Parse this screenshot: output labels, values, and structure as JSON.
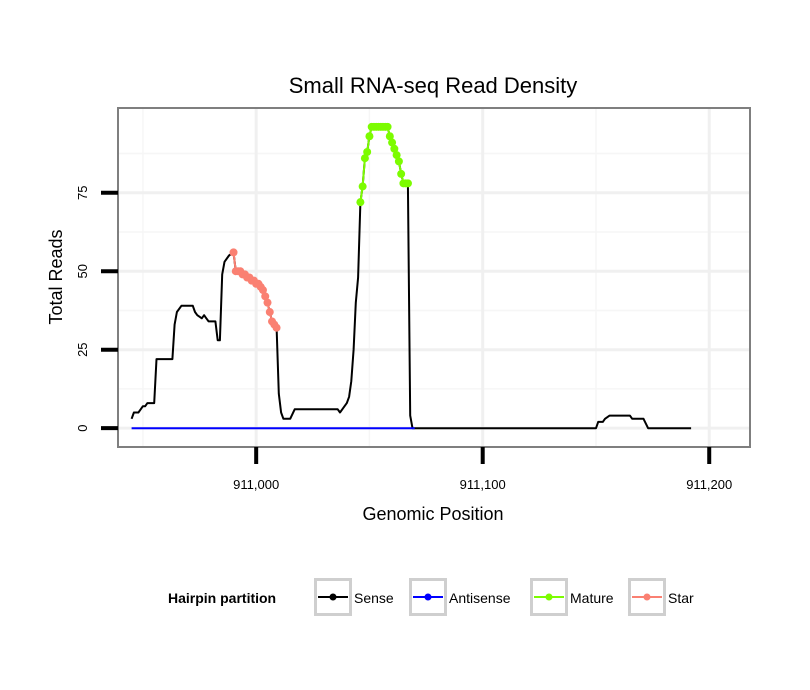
{
  "chart_data": {
    "type": "line",
    "title": "Small RNA-seq Read Density",
    "xlabel": "Genomic Position",
    "ylabel": "Total Reads",
    "xlim": [
      910939,
      911218
    ],
    "ylim": [
      -6,
      102
    ],
    "x_ticks": [
      {
        "value": 911000,
        "label": "911,000"
      },
      {
        "value": 911100,
        "label": "911,100"
      },
      {
        "value": 911200,
        "label": "911,200"
      }
    ],
    "y_ticks": [
      {
        "value": 0,
        "label": "0"
      },
      {
        "value": 25,
        "label": "25"
      },
      {
        "value": 50,
        "label": "50"
      },
      {
        "value": 75,
        "label": "75"
      }
    ],
    "grid": true,
    "legend_position": "bottom",
    "legend": {
      "title": "Hairpin partition",
      "entries": [
        {
          "label": "Sense",
          "color": "#000000"
        },
        {
          "label": "Antisense",
          "color": "#0000ff"
        },
        {
          "label": "Mature",
          "color": "#7cfc00"
        },
        {
          "label": "Star",
          "color": "#fa8072"
        }
      ]
    },
    "series": [
      {
        "name": "Sense",
        "color": "#000000",
        "points": [
          [
            910945,
            3
          ],
          [
            910946,
            5
          ],
          [
            910948,
            5
          ],
          [
            910949,
            6
          ],
          [
            910950,
            7
          ],
          [
            910951,
            7
          ],
          [
            910952,
            8
          ],
          [
            910954,
            8
          ],
          [
            910955,
            8
          ],
          [
            910956,
            22
          ],
          [
            910963,
            22
          ],
          [
            910964,
            33
          ],
          [
            910965,
            37
          ],
          [
            910967,
            39
          ],
          [
            910972,
            39
          ],
          [
            910973,
            37
          ],
          [
            910974,
            36
          ],
          [
            910976,
            35
          ],
          [
            910977,
            36
          ],
          [
            910978,
            35
          ],
          [
            910979,
            34
          ],
          [
            910982,
            34
          ],
          [
            910983,
            28
          ],
          [
            910984,
            28
          ],
          [
            910985,
            49
          ],
          [
            910986,
            53
          ],
          [
            910988,
            55
          ],
          [
            910990,
            56
          ],
          [
            910991,
            50
          ],
          [
            910992,
            50
          ],
          [
            910994,
            49
          ],
          [
            910996,
            48
          ],
          [
            910998,
            47
          ],
          [
            911000,
            46
          ],
          [
            911002,
            45
          ],
          [
            911004,
            42
          ],
          [
            911005,
            40
          ],
          [
            911006,
            37
          ],
          [
            911007,
            34
          ],
          [
            911008,
            33
          ],
          [
            911009,
            32
          ],
          [
            911010,
            11
          ],
          [
            911011,
            5
          ],
          [
            911012,
            3
          ],
          [
            911015,
            3
          ],
          [
            911017,
            6
          ],
          [
            911036,
            6
          ],
          [
            911037,
            5
          ],
          [
            911038,
            6
          ],
          [
            911040,
            8
          ],
          [
            911041,
            10
          ],
          [
            911042,
            15
          ],
          [
            911043,
            25
          ],
          [
            911044,
            40
          ],
          [
            911045,
            48
          ],
          [
            911046,
            72
          ],
          [
            911047,
            77
          ],
          [
            911048,
            86
          ],
          [
            911049,
            88
          ],
          [
            911050,
            93
          ],
          [
            911051,
            96
          ],
          [
            911058,
            96
          ],
          [
            911059,
            93
          ],
          [
            911060,
            91
          ],
          [
            911061,
            89
          ],
          [
            911062,
            87
          ],
          [
            911063,
            85
          ],
          [
            911064,
            81
          ],
          [
            911065,
            78
          ],
          [
            911067,
            78
          ],
          [
            911068,
            4
          ],
          [
            911069,
            0
          ],
          [
            911150,
            0
          ],
          [
            911151,
            2
          ],
          [
            911153,
            2
          ],
          [
            911154,
            3
          ],
          [
            911156,
            4
          ],
          [
            911165,
            4
          ],
          [
            911166,
            3
          ],
          [
            911171,
            3
          ],
          [
            911173,
            0
          ],
          [
            911192,
            0
          ]
        ]
      },
      {
        "name": "Antisense",
        "color": "#0000ff",
        "points": [
          [
            910945,
            0
          ],
          [
            911070,
            0
          ]
        ]
      },
      {
        "name": "Mature",
        "color": "#7cfc00",
        "points": [
          [
            911046,
            72
          ],
          [
            911047,
            77
          ],
          [
            911048,
            86
          ],
          [
            911049,
            88
          ],
          [
            911050,
            93
          ],
          [
            911051,
            96
          ],
          [
            911052,
            96
          ],
          [
            911053,
            96
          ],
          [
            911054,
            96
          ],
          [
            911055,
            96
          ],
          [
            911056,
            96
          ],
          [
            911057,
            96
          ],
          [
            911058,
            96
          ],
          [
            911059,
            93
          ],
          [
            911060,
            91
          ],
          [
            911061,
            89
          ],
          [
            911062,
            87
          ],
          [
            911063,
            85
          ],
          [
            911064,
            81
          ],
          [
            911065,
            78
          ],
          [
            911066,
            78
          ],
          [
            911067,
            78
          ]
        ]
      },
      {
        "name": "Star",
        "color": "#fa8072",
        "points": [
          [
            910990,
            56
          ],
          [
            910991,
            50
          ],
          [
            910992,
            50
          ],
          [
            910993,
            50
          ],
          [
            910994,
            49
          ],
          [
            910995,
            49
          ],
          [
            910996,
            48
          ],
          [
            910997,
            48
          ],
          [
            910998,
            47
          ],
          [
            910999,
            47
          ],
          [
            911000,
            46
          ],
          [
            911001,
            46
          ],
          [
            911002,
            45
          ],
          [
            911003,
            44
          ],
          [
            911004,
            42
          ],
          [
            911005,
            40
          ],
          [
            911006,
            37
          ],
          [
            911007,
            34
          ],
          [
            911008,
            33
          ],
          [
            911009,
            32
          ]
        ]
      }
    ]
  }
}
